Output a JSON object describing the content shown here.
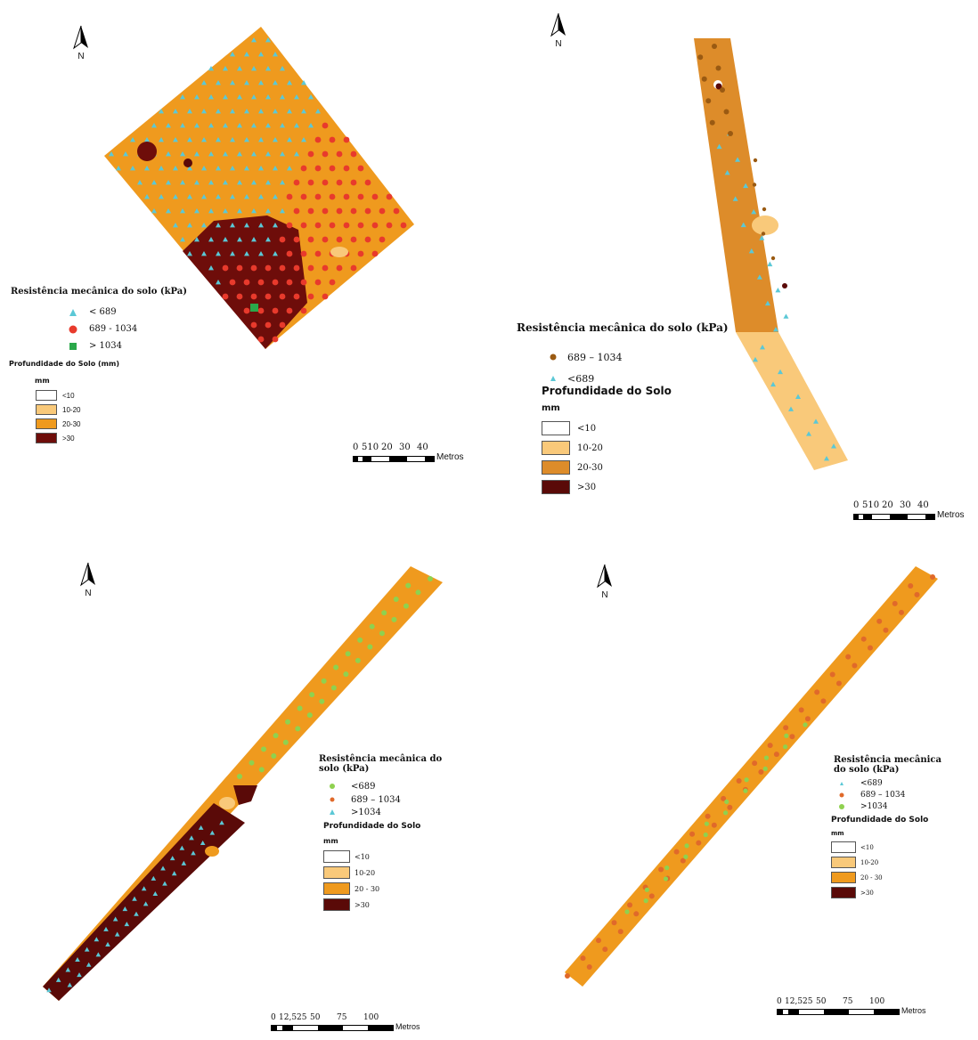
{
  "panels": [
    {
      "north_label": "N",
      "legend": {
        "title": "Resistência mecânica do solo (kPa)",
        "points": [
          {
            "label": "< 689",
            "color": "#5bc8d6",
            "shape": "triangle"
          },
          {
            "label": "689 - 1034",
            "color": "#e83a2c",
            "shape": "circle"
          },
          {
            "label": "> 1034",
            "color": "#2aa84a",
            "shape": "square"
          }
        ],
        "depth_title": "Profundidade do Solo (mm)",
        "units": "mm",
        "classes": [
          {
            "label": "<10",
            "color": "#ffffff"
          },
          {
            "label": "10-20",
            "color": "#f9c97a"
          },
          {
            "label": "20-30",
            "color": "#ef9a1e"
          },
          {
            "label": ">30",
            "color": "#6e0d0a"
          }
        ]
      },
      "scale": {
        "ticks": [
          "0",
          "510",
          "20",
          "30",
          "40"
        ],
        "unit": "Metros"
      }
    },
    {
      "north_label": "N",
      "legend": {
        "title": "Resistência mecânica do solo (kPa)",
        "points": [
          {
            "label": "689 – 1034",
            "color": "#9a5a12",
            "shape": "circle"
          },
          {
            "label": "<689",
            "color": "#5bc8d6",
            "shape": "triangle"
          }
        ],
        "depth_title": "Profundidade do Solo",
        "units": "mm",
        "classes": [
          {
            "label": "<10",
            "color": "#ffffff"
          },
          {
            "label": "10-20",
            "color": "#f9c97a"
          },
          {
            "label": "20-30",
            "color": "#dd8c2a"
          },
          {
            "label": ">30",
            "color": "#5a0a08"
          }
        ]
      },
      "scale": {
        "ticks": [
          "0",
          "510",
          "20",
          "30",
          "40"
        ],
        "unit": "Metros"
      }
    },
    {
      "north_label": "N",
      "legend": {
        "title_lines": [
          "Resistência mecânica do",
          "solo (kPa)"
        ],
        "points": [
          {
            "label": "<689",
            "color": "#8fd14f",
            "shape": "circle"
          },
          {
            "label": "689 – 1034",
            "color": "#e0692a",
            "shape": "circle"
          },
          {
            "label": ">1034",
            "color": "#5bc8d6",
            "shape": "triangle"
          }
        ],
        "depth_title": "Profundidade do Solo",
        "units": "mm",
        "classes": [
          {
            "label": "<10",
            "color": "#ffffff"
          },
          {
            "label": "10-20",
            "color": "#f9c97a"
          },
          {
            "label": "20 - 30",
            "color": "#ef9a1e"
          },
          {
            "label": ">30",
            "color": "#5a0a08"
          }
        ]
      },
      "scale": {
        "ticks": [
          "0",
          "12,525",
          "50",
          "75",
          "100"
        ],
        "unit": "Metros"
      }
    },
    {
      "north_label": "N",
      "legend": {
        "title_lines": [
          "Resistência mecânica",
          "do solo (kPa)"
        ],
        "points": [
          {
            "label": "<689",
            "color": "#5bc8d6",
            "shape": "triangle"
          },
          {
            "label": "689 – 1034",
            "color": "#e0692a",
            "shape": "circle"
          },
          {
            "label": ">1034",
            "color": "#8fd14f",
            "shape": "circle"
          }
        ],
        "depth_title": "Profundidade do Solo",
        "units": "mm",
        "classes": [
          {
            "label": "<10",
            "color": "#ffffff"
          },
          {
            "label": "10-20",
            "color": "#f9c97a"
          },
          {
            "label": "20 - 30",
            "color": "#ef9a1e"
          },
          {
            "label": ">30",
            "color": "#5a0a08"
          }
        ]
      },
      "scale": {
        "ticks": [
          "0",
          "12,525",
          "50",
          "75",
          "100"
        ],
        "unit": "Metros"
      }
    }
  ]
}
